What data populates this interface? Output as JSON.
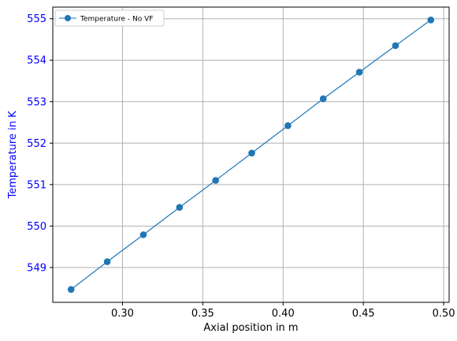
{
  "chart_data": {
    "type": "line",
    "xlabel": "Axial position in m",
    "ylabel": "Temperature in K",
    "xlim": [
      0.2566,
      0.5034
    ],
    "ylim": [
      548.16,
      555.28
    ],
    "x_ticks": [
      0.3,
      0.35,
      0.4,
      0.45,
      0.5
    ],
    "x_tick_labels": [
      "0.30",
      "0.35",
      "0.40",
      "0.45",
      "0.50"
    ],
    "y_ticks": [
      549,
      550,
      551,
      552,
      553,
      554,
      555
    ],
    "y_tick_labels": [
      "549",
      "550",
      "551",
      "552",
      "553",
      "554",
      "555"
    ],
    "grid": true,
    "legend_position": "top-left",
    "series": [
      {
        "name": "Temperature - No VF",
        "color": "#1f77b4",
        "marker": "circle",
        "x": [
          0.268,
          0.2905,
          0.313,
          0.3355,
          0.358,
          0.3805,
          0.403,
          0.425,
          0.4475,
          0.47,
          0.492
        ],
        "y": [
          548.47,
          549.14,
          549.79,
          550.45,
          551.1,
          551.76,
          552.42,
          553.07,
          553.71,
          554.35,
          554.97
        ]
      }
    ],
    "colors": {
      "ylabel": "#0000ff",
      "y_tick_labels": "#0000ff",
      "grid": "#b0b0b0"
    }
  }
}
